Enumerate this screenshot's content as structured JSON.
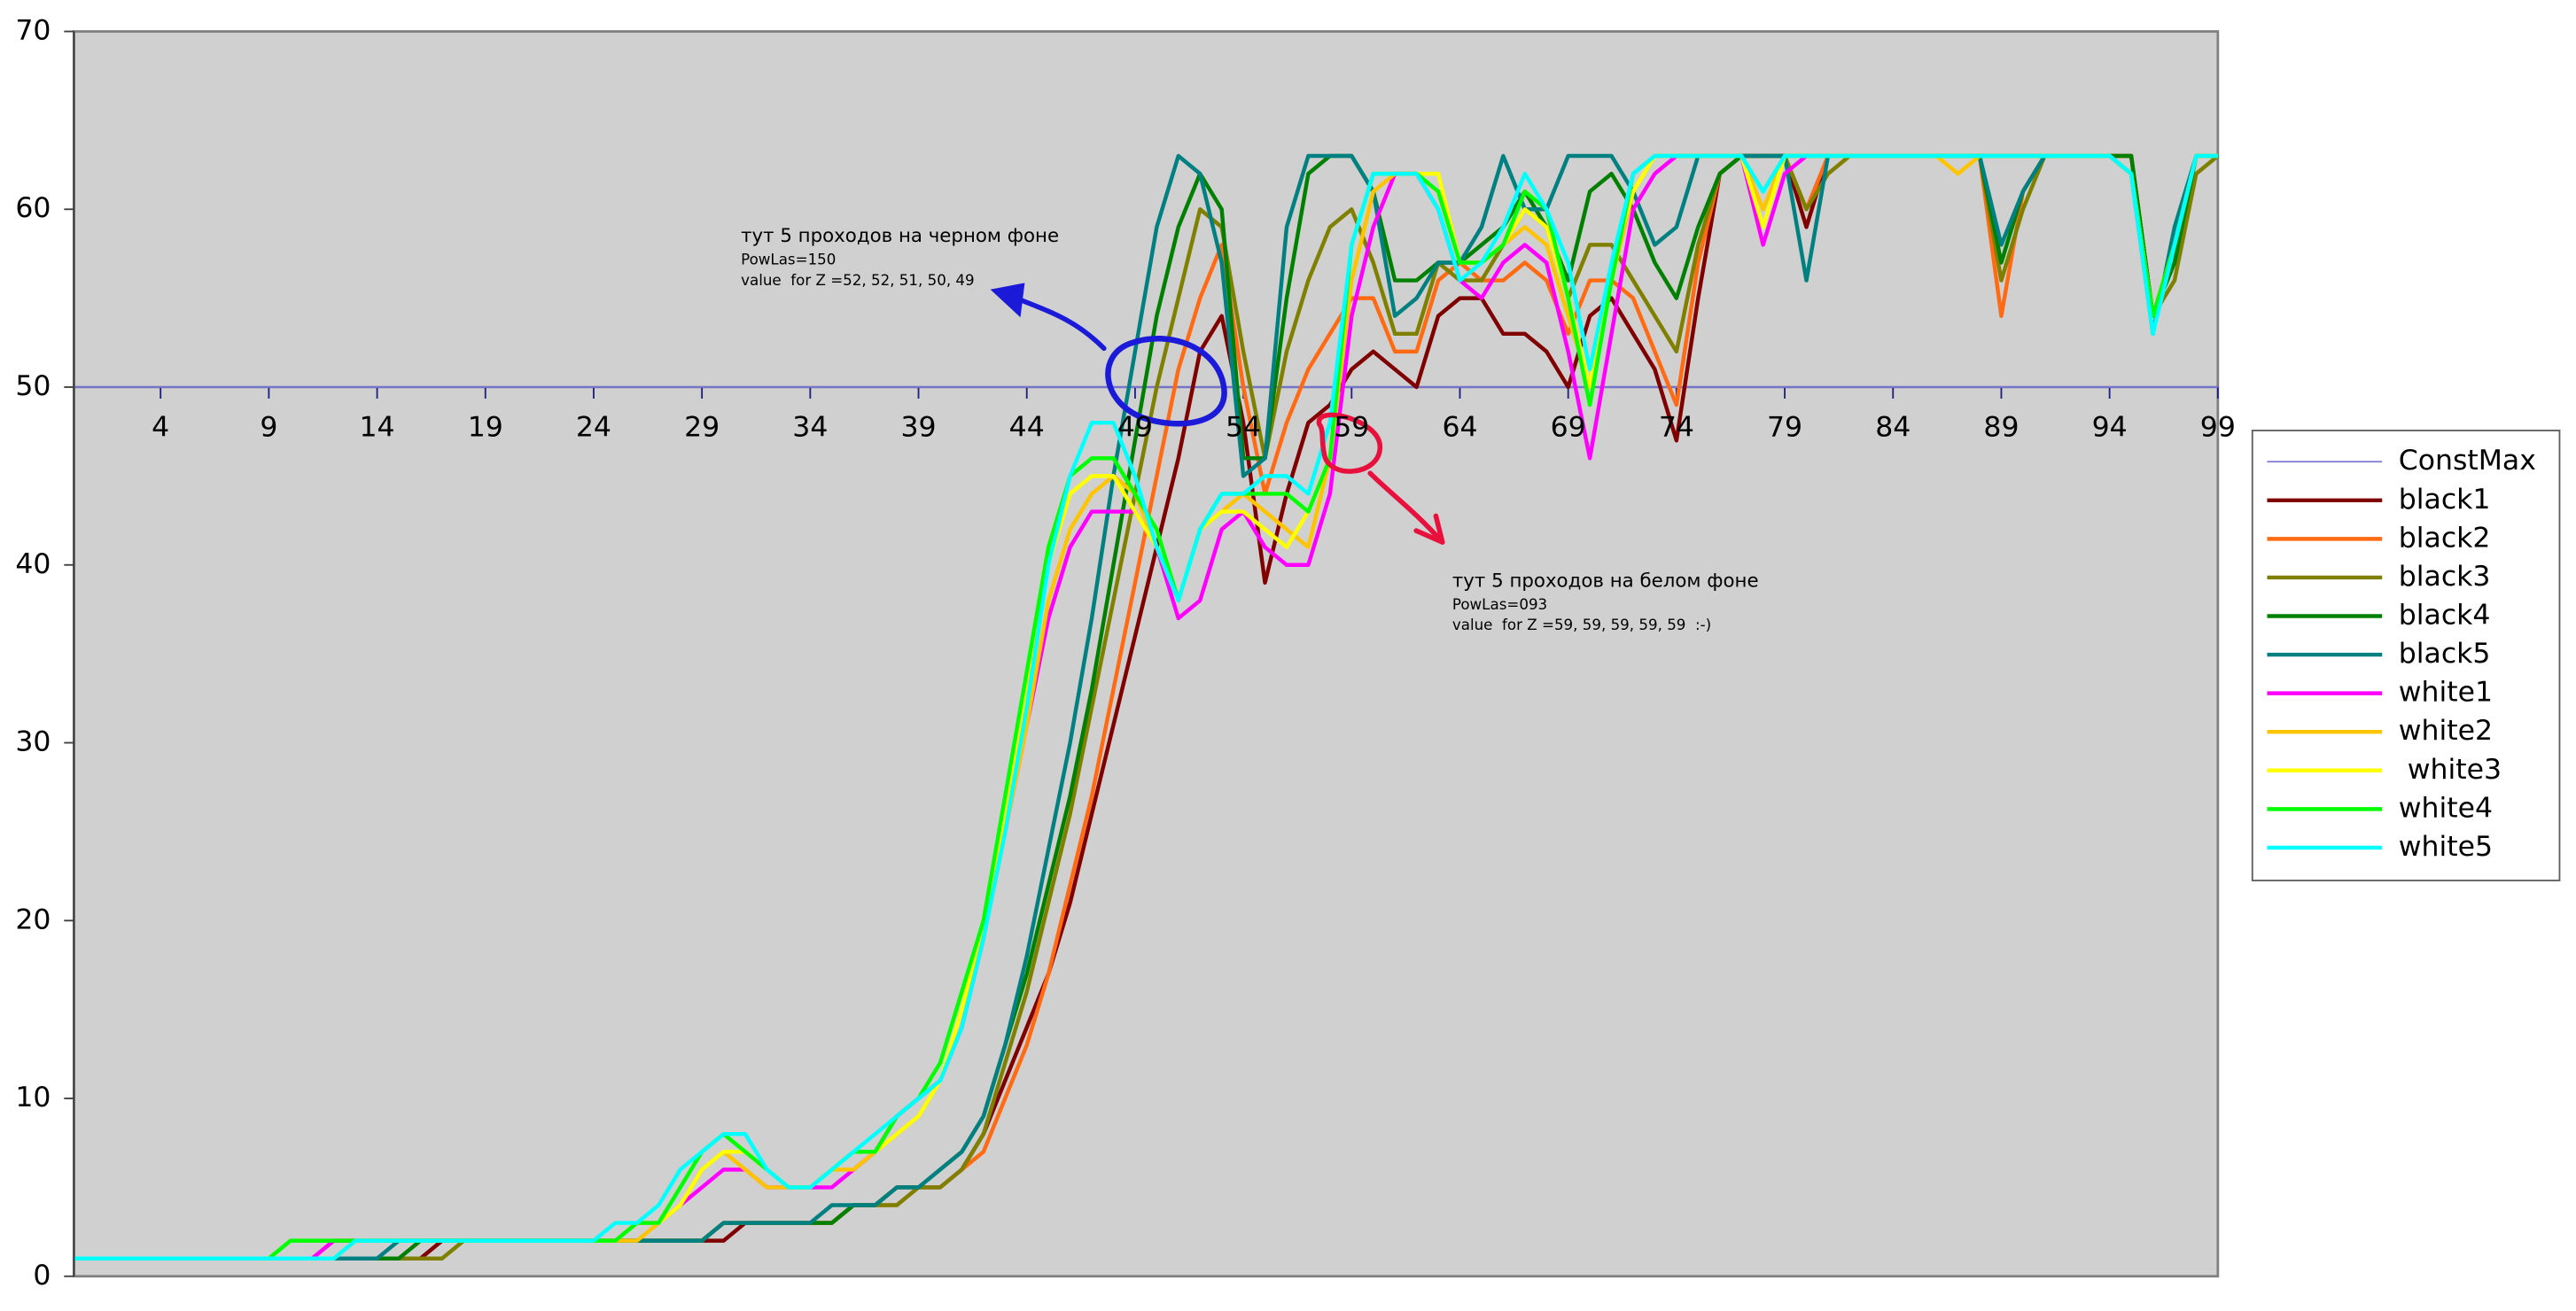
{
  "chart_data": {
    "type": "line",
    "x": [
      0,
      1,
      2,
      3,
      4,
      5,
      6,
      7,
      8,
      9,
      10,
      11,
      12,
      13,
      14,
      15,
      16,
      17,
      18,
      19,
      20,
      21,
      22,
      23,
      24,
      25,
      26,
      27,
      28,
      29,
      30,
      31,
      32,
      33,
      34,
      35,
      36,
      37,
      38,
      39,
      40,
      41,
      42,
      43,
      44,
      45,
      46,
      47,
      48,
      49,
      50,
      51,
      52,
      53,
      54,
      55,
      56,
      57,
      58,
      59,
      60,
      61,
      62,
      63,
      64,
      65,
      66,
      67,
      68,
      69,
      70,
      71,
      72,
      73,
      74,
      75,
      76,
      77,
      78,
      79,
      80,
      81,
      82,
      83,
      84,
      85,
      86,
      87,
      88,
      89,
      90,
      91,
      92,
      93,
      94,
      95,
      96,
      97,
      98,
      99
    ],
    "xlim": [
      0,
      99
    ],
    "xticks": [
      4,
      9,
      14,
      19,
      24,
      29,
      34,
      39,
      44,
      49,
      54,
      59,
      64,
      69,
      74,
      79,
      84,
      89,
      94,
      99
    ],
    "ylim": [
      0,
      70
    ],
    "yticks": [
      0,
      10,
      20,
      30,
      40,
      50,
      60,
      70
    ],
    "x_axis_crosses_at": 50,
    "legend": "right",
    "series": [
      {
        "name": "ConstMax",
        "color": "#8080d8",
        "values": [
          50,
          50,
          50,
          50,
          50,
          50,
          50,
          50,
          50,
          50,
          50,
          50,
          50,
          50,
          50,
          50,
          50,
          50,
          50,
          50,
          50,
          50,
          50,
          50,
          50,
          50,
          50,
          50,
          50,
          50,
          50,
          50,
          50,
          50,
          50,
          50,
          50,
          50,
          50,
          50,
          50,
          50,
          50,
          50,
          50,
          50,
          50,
          50,
          50,
          50,
          50,
          50,
          50,
          50,
          50,
          50,
          50,
          50,
          50,
          50,
          50,
          50,
          50,
          50,
          50,
          50,
          50,
          50,
          50,
          50,
          50,
          50,
          50,
          50,
          50,
          50,
          50,
          50,
          50,
          50,
          50,
          50,
          50,
          50,
          50,
          50,
          50,
          50,
          50,
          50,
          50,
          50,
          50,
          50,
          50,
          50,
          50,
          50,
          50,
          50
        ]
      },
      {
        "name": "black1",
        "color": "#800000",
        "values": [
          1,
          1,
          1,
          1,
          1,
          1,
          1,
          1,
          1,
          1,
          1,
          1,
          1,
          1,
          1,
          1,
          1,
          2,
          2,
          2,
          2,
          2,
          2,
          2,
          2,
          2,
          2,
          2,
          2,
          2,
          2,
          3,
          3,
          3,
          3,
          3,
          4,
          4,
          5,
          5,
          5,
          6,
          8,
          11,
          14,
          17,
          21,
          26,
          31,
          36,
          41,
          46,
          52,
          54,
          48,
          39,
          44,
          48,
          49,
          51,
          52,
          51,
          50,
          54,
          55,
          55,
          53,
          53,
          52,
          50,
          54,
          55,
          53,
          51,
          47,
          55,
          62,
          63,
          63,
          63,
          59,
          63,
          63,
          63,
          63,
          63,
          63,
          63,
          63,
          63,
          63,
          63,
          63,
          63,
          63,
          63,
          54,
          58,
          63,
          63
        ]
      },
      {
        "name": "black2",
        "color": "#ff6a13",
        "values": [
          1,
          1,
          1,
          1,
          1,
          1,
          1,
          1,
          1,
          1,
          1,
          1,
          2,
          2,
          2,
          2,
          2,
          2,
          2,
          2,
          2,
          2,
          2,
          2,
          2,
          2,
          2,
          2,
          2,
          2,
          3,
          3,
          3,
          3,
          3,
          3,
          4,
          4,
          4,
          5,
          5,
          6,
          7,
          10,
          13,
          17,
          22,
          27,
          33,
          39,
          45,
          51,
          55,
          58,
          50,
          44,
          48,
          51,
          53,
          55,
          55,
          52,
          52,
          56,
          57,
          56,
          56,
          57,
          56,
          53,
          56,
          56,
          55,
          52,
          49,
          57,
          62,
          63,
          63,
          63,
          60,
          63,
          63,
          63,
          63,
          63,
          63,
          63,
          63,
          54,
          61,
          63,
          63,
          63,
          63,
          63,
          54,
          58,
          63,
          63
        ]
      },
      {
        "name": "black3",
        "color": "#808000",
        "values": [
          1,
          1,
          1,
          1,
          1,
          1,
          1,
          1,
          1,
          1,
          1,
          1,
          1,
          1,
          1,
          1,
          1,
          1,
          2,
          2,
          2,
          2,
          2,
          2,
          2,
          2,
          2,
          2,
          2,
          2,
          3,
          3,
          3,
          3,
          3,
          3,
          4,
          4,
          4,
          5,
          5,
          6,
          8,
          12,
          16,
          21,
          26,
          32,
          38,
          44,
          50,
          55,
          60,
          59,
          52,
          46,
          52,
          56,
          59,
          60,
          57,
          53,
          53,
          57,
          56,
          56,
          58,
          60,
          59,
          55,
          58,
          58,
          56,
          54,
          52,
          58,
          62,
          63,
          63,
          63,
          60,
          62,
          63,
          63,
          63,
          63,
          63,
          63,
          63,
          56,
          60,
          63,
          63,
          63,
          63,
          63,
          54,
          56,
          62,
          63
        ]
      },
      {
        "name": "black4",
        "color": "#008000",
        "values": [
          1,
          1,
          1,
          1,
          1,
          1,
          1,
          1,
          1,
          1,
          1,
          1,
          1,
          1,
          1,
          1,
          2,
          2,
          2,
          2,
          2,
          2,
          2,
          2,
          2,
          2,
          2,
          2,
          2,
          2,
          3,
          3,
          3,
          3,
          3,
          3,
          4,
          4,
          5,
          5,
          6,
          7,
          9,
          13,
          17,
          22,
          27,
          33,
          40,
          47,
          54,
          59,
          62,
          60,
          46,
          46,
          55,
          62,
          63,
          63,
          61,
          56,
          56,
          57,
          57,
          58,
          59,
          61,
          59,
          56,
          61,
          62,
          60,
          57,
          55,
          59,
          62,
          63,
          63,
          63,
          63,
          63,
          63,
          63,
          63,
          63,
          63,
          63,
          63,
          57,
          61,
          63,
          63,
          63,
          63,
          63,
          54,
          57,
          63,
          63
        ]
      },
      {
        "name": "black5",
        "color": "#008080",
        "values": [
          1,
          1,
          1,
          1,
          1,
          1,
          1,
          1,
          1,
          1,
          1,
          1,
          1,
          1,
          1,
          2,
          2,
          2,
          2,
          2,
          2,
          2,
          2,
          2,
          2,
          2,
          2,
          2,
          2,
          2,
          3,
          3,
          3,
          3,
          3,
          4,
          4,
          4,
          5,
          5,
          6,
          7,
          9,
          13,
          18,
          24,
          30,
          37,
          45,
          52,
          59,
          63,
          62,
          57,
          45,
          46,
          59,
          63,
          63,
          63,
          61,
          54,
          55,
          57,
          57,
          59,
          63,
          60,
          60,
          63,
          63,
          63,
          61,
          58,
          59,
          63,
          63,
          63,
          63,
          63,
          56,
          63,
          63,
          63,
          63,
          63,
          63,
          63,
          63,
          58,
          61,
          63,
          63,
          63,
          63,
          62,
          53,
          59,
          63,
          63
        ]
      },
      {
        "name": "white1",
        "color": "#ff00ff",
        "values": [
          1,
          1,
          1,
          1,
          1,
          1,
          1,
          1,
          1,
          1,
          1,
          1,
          2,
          2,
          2,
          2,
          2,
          2,
          2,
          2,
          2,
          2,
          2,
          2,
          2,
          2,
          3,
          3,
          4,
          5,
          6,
          6,
          5,
          5,
          5,
          5,
          6,
          7,
          9,
          10,
          11,
          14,
          19,
          25,
          31,
          37,
          41,
          43,
          43,
          43,
          41,
          37,
          38,
          42,
          43,
          41,
          40,
          40,
          44,
          54,
          59,
          62,
          62,
          60,
          56,
          55,
          57,
          58,
          57,
          52,
          46,
          53,
          60,
          62,
          63,
          63,
          63,
          63,
          58,
          62,
          63,
          63,
          63,
          63,
          63,
          63,
          63,
          63,
          63,
          63,
          63,
          63,
          63,
          63,
          63,
          62,
          54,
          58,
          63,
          63
        ]
      },
      {
        "name": "white2",
        "color": "#ffc400",
        "values": [
          1,
          1,
          1,
          1,
          1,
          1,
          1,
          1,
          1,
          1,
          1,
          1,
          1,
          2,
          2,
          2,
          2,
          2,
          2,
          2,
          2,
          2,
          2,
          2,
          2,
          2,
          2,
          3,
          4,
          6,
          7,
          6,
          5,
          5,
          5,
          6,
          6,
          7,
          8,
          9,
          11,
          15,
          19,
          25,
          31,
          38,
          42,
          44,
          45,
          44,
          41,
          38,
          42,
          43,
          44,
          43,
          42,
          41,
          46,
          56,
          61,
          62,
          62,
          61,
          57,
          57,
          58,
          59,
          58,
          54,
          50,
          56,
          61,
          63,
          63,
          63,
          63,
          63,
          60,
          63,
          63,
          63,
          63,
          63,
          63,
          63,
          63,
          62,
          63,
          63,
          63,
          63,
          63,
          63,
          63,
          62,
          54,
          58,
          63,
          63
        ]
      },
      {
        "name": " white3",
        "color": "#ffff00",
        "values": [
          1,
          1,
          1,
          1,
          1,
          1,
          1,
          1,
          1,
          1,
          1,
          1,
          1,
          2,
          2,
          2,
          2,
          2,
          2,
          2,
          2,
          2,
          2,
          2,
          2,
          2,
          3,
          3,
          4,
          6,
          7,
          7,
          6,
          5,
          5,
          6,
          7,
          7,
          8,
          9,
          11,
          15,
          20,
          26,
          33,
          40,
          44,
          45,
          45,
          43,
          41,
          38,
          42,
          43,
          43,
          42,
          41,
          43,
          46,
          58,
          62,
          62,
          62,
          62,
          57,
          57,
          58,
          60,
          59,
          55,
          50,
          57,
          61,
          63,
          63,
          63,
          63,
          63,
          59,
          63,
          63,
          63,
          63,
          63,
          63,
          63,
          63,
          63,
          63,
          63,
          63,
          63,
          63,
          63,
          63,
          62,
          54,
          58,
          63,
          63
        ]
      },
      {
        "name": "white4",
        "color": "#00ff00",
        "values": [
          1,
          1,
          1,
          1,
          1,
          1,
          1,
          1,
          1,
          1,
          2,
          2,
          2,
          2,
          2,
          2,
          2,
          2,
          2,
          2,
          2,
          2,
          2,
          2,
          2,
          2,
          3,
          3,
          5,
          7,
          8,
          7,
          6,
          5,
          5,
          6,
          7,
          7,
          9,
          10,
          12,
          16,
          20,
          27,
          34,
          41,
          45,
          46,
          46,
          44,
          42,
          38,
          42,
          44,
          44,
          44,
          44,
          43,
          46,
          58,
          62,
          62,
          62,
          61,
          57,
          57,
          58,
          61,
          60,
          55,
          49,
          56,
          62,
          63,
          63,
          63,
          63,
          63,
          61,
          63,
          63,
          63,
          63,
          63,
          63,
          63,
          63,
          63,
          63,
          63,
          63,
          63,
          63,
          63,
          63,
          62,
          54,
          58,
          63,
          63
        ]
      },
      {
        "name": "white5",
        "color": "#00ffff",
        "values": [
          1,
          1,
          1,
          1,
          1,
          1,
          1,
          1,
          1,
          1,
          1,
          1,
          1,
          2,
          2,
          2,
          2,
          2,
          2,
          2,
          2,
          2,
          2,
          2,
          2,
          3,
          3,
          4,
          6,
          7,
          8,
          8,
          6,
          5,
          5,
          6,
          7,
          8,
          9,
          10,
          11,
          14,
          19,
          25,
          32,
          40,
          45,
          48,
          48,
          45,
          41,
          38,
          42,
          44,
          44,
          45,
          45,
          44,
          48,
          58,
          62,
          62,
          62,
          60,
          56,
          57,
          59,
          62,
          60,
          57,
          51,
          57,
          62,
          63,
          63,
          63,
          63,
          63,
          61,
          63,
          63,
          63,
          63,
          63,
          63,
          63,
          63,
          63,
          63,
          63,
          63,
          63,
          63,
          63,
          63,
          62,
          53,
          58,
          63,
          63
        ]
      }
    ],
    "annotations": [
      {
        "color": "#1a1ad8",
        "lines": [
          "тут 5 проходов на черном фоне",
          "PowLas=150",
          "value  for Z =52, 52, 51, 50, 49"
        ]
      },
      {
        "color": "#e8103c",
        "lines": [
          "тут 5 проходов на белом фоне",
          "PowLas=093",
          "value  for Z =59, 59, 59, 59, 59  :-)"
        ]
      }
    ]
  }
}
